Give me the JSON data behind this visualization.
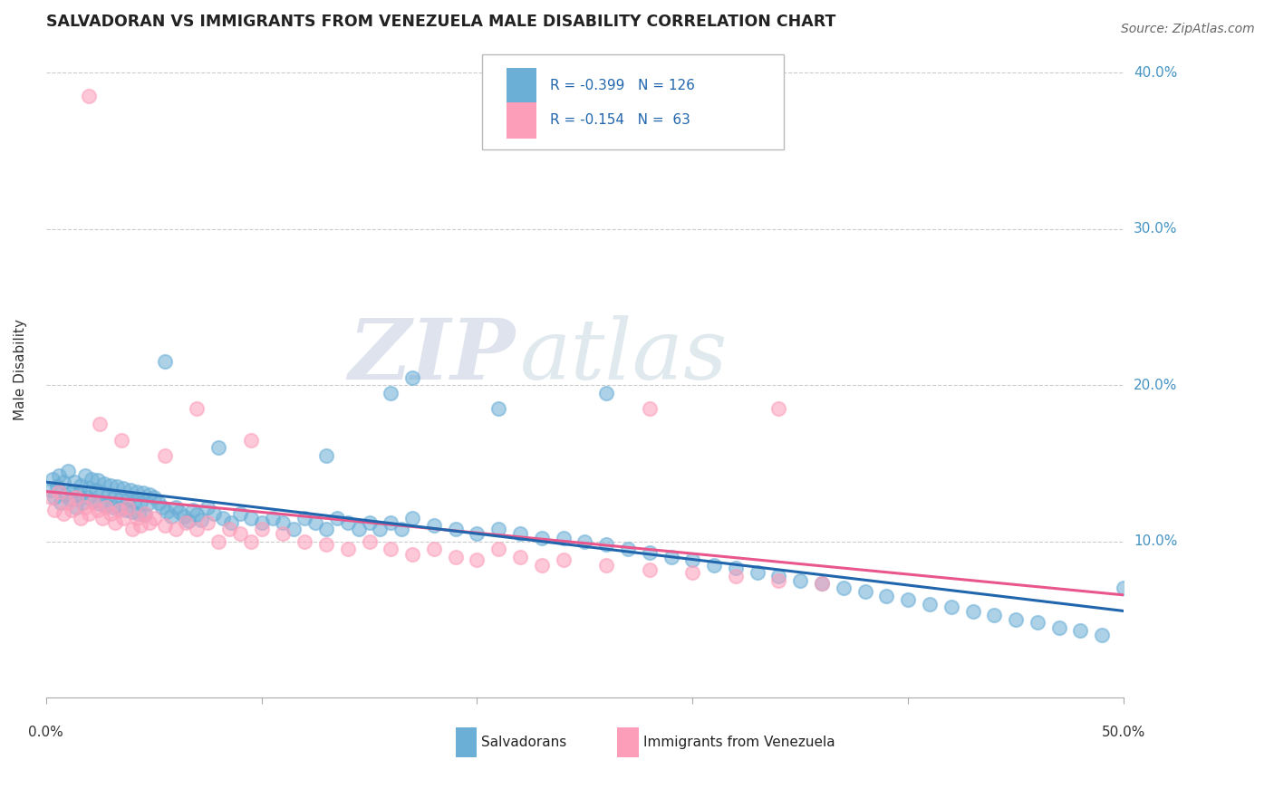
{
  "title": "SALVADORAN VS IMMIGRANTS FROM VENEZUELA MALE DISABILITY CORRELATION CHART",
  "source_text": "Source: ZipAtlas.com",
  "ylabel": "Male Disability",
  "blue_label": "Salvadorans",
  "pink_label": "Immigrants from Venezuela",
  "blue_R": -0.399,
  "blue_N": 126,
  "pink_R": -0.154,
  "pink_N": 63,
  "xlim": [
    0.0,
    0.5
  ],
  "ylim": [
    0.0,
    0.42
  ],
  "blue_color": "#6baed6",
  "pink_color": "#fc9eba",
  "blue_line_color": "#2166ac",
  "pink_line_color": "#e8568c",
  "legend_R_color": "#2166ac",
  "watermark_zip": "ZIP",
  "watermark_atlas": "atlas",
  "yticks": [
    0.1,
    0.2,
    0.3,
    0.4
  ],
  "ytick_labels": [
    "10.0%",
    "20.0%",
    "30.0%",
    "40.0%"
  ],
  "blue_scatter_x": [
    0.002,
    0.003,
    0.004,
    0.005,
    0.006,
    0.007,
    0.008,
    0.009,
    0.01,
    0.011,
    0.012,
    0.013,
    0.014,
    0.015,
    0.016,
    0.017,
    0.018,
    0.019,
    0.02,
    0.021,
    0.022,
    0.023,
    0.024,
    0.025,
    0.026,
    0.027,
    0.028,
    0.029,
    0.03,
    0.031,
    0.032,
    0.033,
    0.034,
    0.035,
    0.036,
    0.037,
    0.038,
    0.039,
    0.04,
    0.041,
    0.042,
    0.043,
    0.044,
    0.045,
    0.046,
    0.047,
    0.048,
    0.05,
    0.052,
    0.054,
    0.056,
    0.058,
    0.06,
    0.062,
    0.064,
    0.066,
    0.068,
    0.07,
    0.072,
    0.075,
    0.078,
    0.082,
    0.086,
    0.09,
    0.095,
    0.1,
    0.105,
    0.11,
    0.115,
    0.12,
    0.125,
    0.13,
    0.135,
    0.14,
    0.145,
    0.15,
    0.155,
    0.16,
    0.165,
    0.17,
    0.18,
    0.19,
    0.2,
    0.21,
    0.22,
    0.23,
    0.24,
    0.25,
    0.26,
    0.27,
    0.28,
    0.29,
    0.3,
    0.31,
    0.32,
    0.33,
    0.34,
    0.35,
    0.36,
    0.37,
    0.38,
    0.39,
    0.4,
    0.41,
    0.42,
    0.43,
    0.44,
    0.45,
    0.46,
    0.47,
    0.48,
    0.49,
    0.16,
    0.26,
    0.5,
    0.055,
    0.08,
    0.13,
    0.17,
    0.21
  ],
  "blue_scatter_y": [
    0.133,
    0.14,
    0.128,
    0.135,
    0.142,
    0.125,
    0.138,
    0.13,
    0.145,
    0.127,
    0.132,
    0.138,
    0.122,
    0.13,
    0.136,
    0.125,
    0.142,
    0.128,
    0.134,
    0.14,
    0.126,
    0.133,
    0.139,
    0.124,
    0.131,
    0.137,
    0.123,
    0.13,
    0.136,
    0.122,
    0.129,
    0.135,
    0.121,
    0.128,
    0.134,
    0.12,
    0.127,
    0.133,
    0.119,
    0.126,
    0.132,
    0.118,
    0.125,
    0.131,
    0.117,
    0.124,
    0.13,
    0.128,
    0.125,
    0.122,
    0.119,
    0.116,
    0.122,
    0.119,
    0.116,
    0.113,
    0.12,
    0.117,
    0.114,
    0.122,
    0.118,
    0.115,
    0.112,
    0.118,
    0.115,
    0.112,
    0.115,
    0.112,
    0.108,
    0.115,
    0.112,
    0.108,
    0.115,
    0.112,
    0.108,
    0.112,
    0.108,
    0.112,
    0.108,
    0.115,
    0.11,
    0.108,
    0.105,
    0.108,
    0.105,
    0.102,
    0.102,
    0.1,
    0.098,
    0.095,
    0.093,
    0.09,
    0.088,
    0.085,
    0.083,
    0.08,
    0.078,
    0.075,
    0.073,
    0.07,
    0.068,
    0.065,
    0.063,
    0.06,
    0.058,
    0.055,
    0.053,
    0.05,
    0.048,
    0.045,
    0.043,
    0.04,
    0.195,
    0.195,
    0.07,
    0.215,
    0.16,
    0.155,
    0.205,
    0.185
  ],
  "pink_scatter_x": [
    0.002,
    0.004,
    0.006,
    0.008,
    0.01,
    0.012,
    0.014,
    0.016,
    0.018,
    0.02,
    0.022,
    0.024,
    0.026,
    0.028,
    0.03,
    0.032,
    0.034,
    0.036,
    0.038,
    0.04,
    0.042,
    0.044,
    0.046,
    0.048,
    0.05,
    0.055,
    0.06,
    0.065,
    0.07,
    0.075,
    0.08,
    0.085,
    0.09,
    0.095,
    0.1,
    0.11,
    0.12,
    0.13,
    0.14,
    0.15,
    0.16,
    0.17,
    0.18,
    0.19,
    0.2,
    0.21,
    0.22,
    0.23,
    0.24,
    0.26,
    0.28,
    0.3,
    0.32,
    0.34,
    0.36,
    0.025,
    0.035,
    0.055,
    0.07,
    0.095,
    0.02,
    0.34,
    0.28
  ],
  "pink_scatter_y": [
    0.128,
    0.12,
    0.132,
    0.118,
    0.125,
    0.12,
    0.128,
    0.115,
    0.122,
    0.118,
    0.125,
    0.12,
    0.115,
    0.122,
    0.118,
    0.112,
    0.12,
    0.115,
    0.122,
    0.108,
    0.115,
    0.11,
    0.118,
    0.112,
    0.115,
    0.11,
    0.108,
    0.112,
    0.108,
    0.112,
    0.1,
    0.108,
    0.105,
    0.1,
    0.108,
    0.105,
    0.1,
    0.098,
    0.095,
    0.1,
    0.095,
    0.092,
    0.095,
    0.09,
    0.088,
    0.095,
    0.09,
    0.085,
    0.088,
    0.085,
    0.082,
    0.08,
    0.078,
    0.075,
    0.073,
    0.175,
    0.165,
    0.155,
    0.185,
    0.165,
    0.385,
    0.185,
    0.185
  ]
}
